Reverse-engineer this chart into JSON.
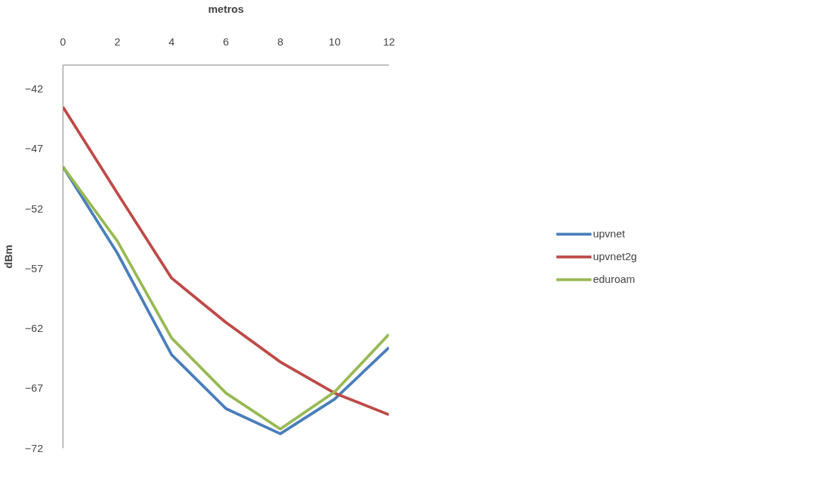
{
  "chart_data": {
    "type": "line",
    "xlabel": "metros",
    "ylabel": "dBm",
    "x": [
      0,
      2,
      4,
      6,
      8,
      10,
      12
    ],
    "xlim": [
      0,
      12
    ],
    "xticks": [
      0,
      2,
      4,
      6,
      8,
      10,
      12
    ],
    "ylim": [
      -72,
      -40
    ],
    "yticks": [
      -72,
      -67,
      -62,
      -57,
      -52,
      -47,
      -42
    ],
    "grid": false,
    "legend": "right",
    "marker": "none",
    "line_style": "solid",
    "series": [
      {
        "name": "upvnet",
        "color": "#4a7ebb",
        "values": [
          -48.5,
          -55.7,
          -64.2,
          -68.7,
          -70.8,
          -67.9,
          -63.6
        ]
      },
      {
        "name": "upvnet2g",
        "color": "#be4b48",
        "values": [
          -43.5,
          -50.7,
          -57.8,
          -61.5,
          -64.8,
          -67.4,
          -69.2
        ]
      },
      {
        "name": "eduroam",
        "color": "#98b954",
        "values": [
          -48.5,
          -54.7,
          -62.8,
          -67.4,
          -70.4,
          -67.3,
          -62.5
        ]
      }
    ]
  }
}
